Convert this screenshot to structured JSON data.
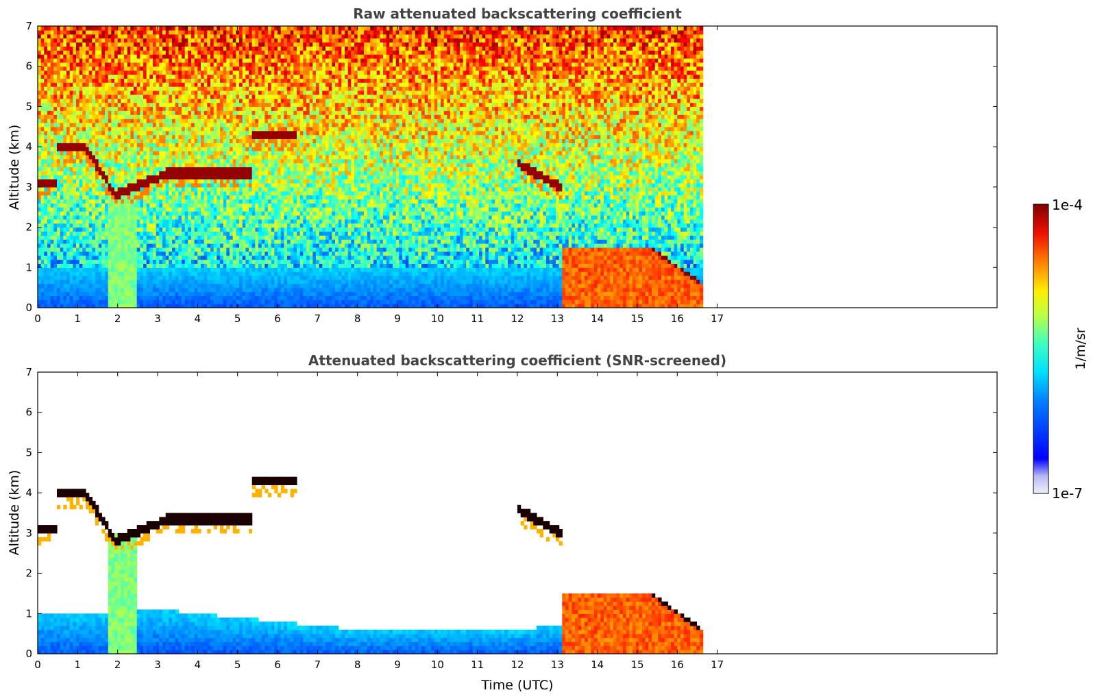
{
  "chart_data": [
    {
      "type": "heatmap",
      "title": "Raw attenuated backscattering coefficient",
      "xlabel": "",
      "ylabel": "Altitude (km)",
      "xlim": [
        0,
        24
      ],
      "ylim": [
        0,
        7
      ],
      "xticks": [
        0,
        1,
        2,
        3,
        4,
        5,
        6,
        7,
        8,
        9,
        10,
        11,
        12,
        13,
        14,
        15,
        16,
        17
      ],
      "yticks": [
        0,
        1,
        2,
        3,
        4,
        5,
        6,
        7
      ],
      "data_end_time": 16.6,
      "color_scale": "jet, log10",
      "features": {
        "boundary_layer_top_km": 1.0,
        "cloud_layer_km": [
          3.0,
          3.4
        ],
        "low_cloud_top_km": 1.55
      }
    },
    {
      "type": "heatmap",
      "title": "Attenuated backscattering coefficient (SNR-screened)",
      "xlabel": "Time (UTC)",
      "ylabel": "Altitude (km)",
      "xlim": [
        0,
        24
      ],
      "ylim": [
        0,
        7
      ],
      "xticks": [
        0,
        1,
        2,
        3,
        4,
        5,
        6,
        7,
        8,
        9,
        10,
        11,
        12,
        13,
        14,
        15,
        16,
        17
      ],
      "yticks": [
        0,
        1,
        2,
        3,
        4,
        5,
        6,
        7
      ],
      "data_end_time": 16.6,
      "color_scale": "jet, log10"
    }
  ],
  "colorbar": {
    "label": "1/m/sr",
    "max_label": "1e-4",
    "min_label": "1e-7",
    "vmin": 1e-07,
    "vmax": 0.0001,
    "colors": [
      "#e8e8f6",
      "#c0c0f0",
      "#9090ff",
      "#0000ff",
      "#0066ff",
      "#00ccff",
      "#00ffcc",
      "#66ff66",
      "#ccff00",
      "#ffee00",
      "#ffaa00",
      "#ff5500",
      "#ee0000",
      "#880000"
    ]
  }
}
